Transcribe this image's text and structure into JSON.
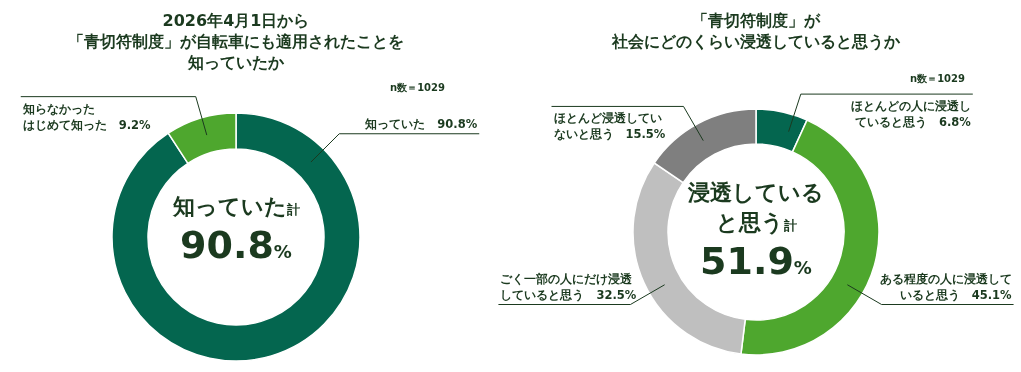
{
  "chart_data": [
    {
      "type": "donut",
      "title": "2026年4月1日から「青切符制度」が自転車にも適用されたことを知っていたか",
      "categories": [
        "知っていた",
        "知らなかったはじめて知った"
      ],
      "values": [
        90.8,
        9.2
      ],
      "colors": [
        "#04664f",
        "#4ea72e"
      ],
      "value_labels": [
        "90.8%",
        "9.2%"
      ],
      "annotations": [
        "知っていた計",
        "90.8%",
        "n数＝1029"
      ]
    },
    {
      "type": "donut",
      "title": "「青切符制度」が社会にどのくらい浸透していると思うか",
      "categories": [
        "ほとんどの人に浸透していると思う",
        "ある程度の人に浸透していると思う",
        "ごく一部の人にだけ浸透していると思う",
        "ほとんど浸透していないと思う"
      ],
      "values": [
        6.8,
        45.1,
        32.5,
        15.5
      ],
      "colors": [
        "#04664f",
        "#4ea72e",
        "#bfbfbf",
        "#7f7f7f"
      ],
      "value_labels": [
        "6.8%",
        "45.1%",
        "32.5%",
        "15.5%"
      ],
      "annotations": [
        "浸透している",
        "と思う計",
        "51.9%",
        "n数＝1029"
      ]
    }
  ]
}
